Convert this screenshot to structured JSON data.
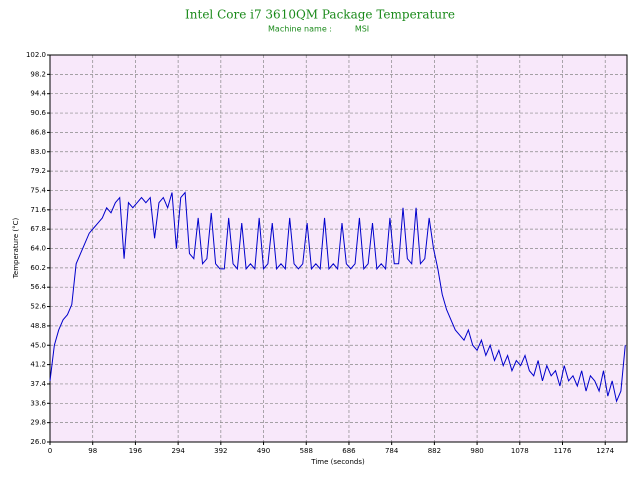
{
  "chart_data": {
    "type": "line",
    "title": "Intel Core i7 3610QM Package Temperature",
    "machine_name_label": "Machine name :",
    "machine_name": "MSI",
    "xlabel": "Time (seconds)",
    "ylabel": "Temperature (°C)",
    "color": "#0000cc",
    "grid": true,
    "xlim": [
      0,
      1324
    ],
    "xticks": [
      0,
      98,
      196,
      294,
      392,
      490,
      588,
      686,
      784,
      882,
      980,
      1078,
      1176,
      1274
    ],
    "ylim": [
      26,
      102
    ],
    "yticks": [
      {
        "value": 26,
        "label": "26.0"
      },
      29.8,
      33.6,
      37.4,
      41.2,
      {
        "value": 45,
        "label": "45.0"
      },
      48.8,
      52.6,
      56.4,
      60.2,
      {
        "value": 64,
        "label": "64.0"
      },
      67.8,
      71.6,
      75.4,
      79.2,
      {
        "value": 83,
        "label": "83.0"
      },
      86.8,
      90.6,
      94.4,
      98.2,
      {
        "value": 102,
        "label": "102.0"
      }
    ],
    "x": [
      0,
      10,
      20,
      30,
      40,
      50,
      60,
      70,
      80,
      90,
      100,
      110,
      120,
      130,
      140,
      150,
      160,
      170,
      180,
      190,
      200,
      210,
      220,
      230,
      240,
      250,
      260,
      270,
      280,
      290,
      300,
      310,
      320,
      330,
      340,
      350,
      360,
      370,
      380,
      390,
      400,
      410,
      420,
      430,
      440,
      450,
      460,
      470,
      480,
      490,
      500,
      510,
      520,
      530,
      540,
      550,
      560,
      570,
      580,
      590,
      600,
      610,
      620,
      630,
      640,
      650,
      660,
      670,
      680,
      690,
      700,
      710,
      720,
      730,
      740,
      750,
      760,
      770,
      780,
      790,
      800,
      810,
      820,
      830,
      840,
      850,
      860,
      870,
      880,
      890,
      900,
      910,
      920,
      930,
      940,
      950,
      960,
      970,
      980,
      990,
      1000,
      1010,
      1020,
      1030,
      1040,
      1050,
      1060,
      1070,
      1080,
      1090,
      1100,
      1110,
      1120,
      1130,
      1140,
      1150,
      1160,
      1170,
      1180,
      1190,
      1200,
      1210,
      1220,
      1230,
      1240,
      1250,
      1260,
      1270,
      1280,
      1290,
      1300,
      1310,
      1320
    ],
    "values": [
      38,
      45,
      48,
      50,
      51,
      53,
      61,
      63,
      65,
      67,
      68,
      69,
      70,
      72,
      71,
      73,
      74,
      62,
      73,
      72,
      73,
      74,
      73,
      74,
      66,
      73,
      74,
      72,
      75,
      64,
      74,
      75,
      63,
      62,
      70,
      61,
      62,
      71,
      61,
      60,
      60,
      70,
      61,
      60,
      69,
      60,
      61,
      60,
      70,
      60,
      61,
      69,
      60,
      61,
      60,
      70,
      61,
      60,
      61,
      69,
      60,
      61,
      60,
      70,
      60,
      61,
      60,
      69,
      61,
      60,
      61,
      70,
      60,
      61,
      69,
      60,
      61,
      60,
      70,
      61,
      61,
      72,
      62,
      61,
      72,
      61,
      62,
      70,
      64,
      60,
      55,
      52,
      50,
      48,
      47,
      46,
      48,
      45,
      44,
      46,
      43,
      45,
      42,
      44,
      41,
      43,
      40,
      42,
      41,
      43,
      40,
      39,
      42,
      38,
      41,
      39,
      40,
      37,
      41,
      38,
      39,
      37,
      40,
      36,
      39,
      38,
      36,
      40,
      35,
      38,
      34,
      36,
      45
    ]
  }
}
